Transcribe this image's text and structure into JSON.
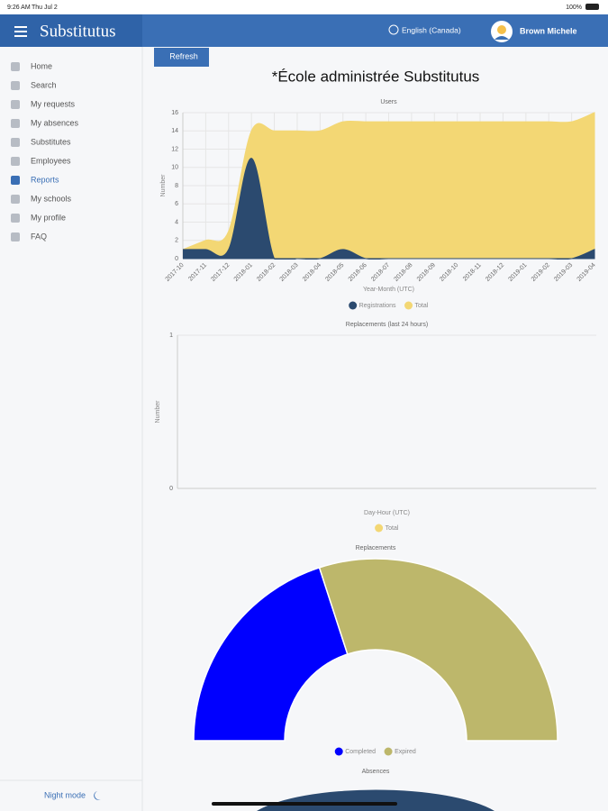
{
  "status_bar": {
    "time": "9:26 AM",
    "date": "Thu Jul 2",
    "battery": "100%"
  },
  "header": {
    "brand": "Substitutus",
    "language": "English (Canada)",
    "user": "Brown Michele"
  },
  "sidebar": {
    "items": [
      "Home",
      "Search",
      "My requests",
      "My absences",
      "Substitutes",
      "Employees",
      "Reports",
      "My schools",
      "My profile",
      "FAQ"
    ],
    "night_mode": "Night mode"
  },
  "toolbar": {
    "refresh": "Refresh"
  },
  "page": {
    "title": "*École administrée Substitutus"
  },
  "chart_data": [
    {
      "type": "area",
      "title": "Users",
      "x_label": "Year-Month (UTC)",
      "y_label": "Number",
      "categories": [
        "2017-10",
        "2017-11",
        "2017-12",
        "2018-01",
        "2018-02",
        "2018-03",
        "2018-04",
        "2018-05",
        "2018-06",
        "2018-07",
        "2018-08",
        "2018-09",
        "2018-10",
        "2018-11",
        "2018-12",
        "2019-01",
        "2019-02",
        "2019-03",
        "2019-04"
      ],
      "series": [
        {
          "name": "Registrations",
          "color": "#2b4a6f",
          "values": [
            1,
            1,
            1,
            11,
            0,
            0,
            0,
            1,
            0,
            0,
            0,
            0,
            0,
            0,
            0,
            0,
            0,
            0,
            1
          ]
        },
        {
          "name": "Total",
          "color": "#f3d774",
          "values": [
            1,
            2,
            3,
            14,
            14,
            14,
            14,
            15,
            15,
            15,
            15,
            15,
            15,
            15,
            15,
            15,
            15,
            15,
            16
          ]
        }
      ],
      "ylim": [
        0,
        16
      ],
      "yticks": [
        0,
        2,
        4,
        6,
        8,
        10,
        12,
        14,
        16
      ],
      "grid": true
    },
    {
      "type": "line",
      "title": "Replacements (last 24 hours)",
      "x_label": "Day-Hour (UTC)",
      "y_label": "Number",
      "categories": [],
      "series": [
        {
          "name": "Total",
          "color": "#f3d774",
          "values": []
        }
      ],
      "ylim": [
        0,
        1
      ],
      "yticks": [
        0,
        1
      ],
      "grid": true
    },
    {
      "type": "half-doughnut",
      "title": "Replacements",
      "categories": [
        "Completed",
        "Expired"
      ],
      "values": [
        40,
        60
      ],
      "colors": [
        "#0000ff",
        "#bdb76b"
      ]
    },
    {
      "type": "doughnut",
      "title": "Absences"
    }
  ]
}
